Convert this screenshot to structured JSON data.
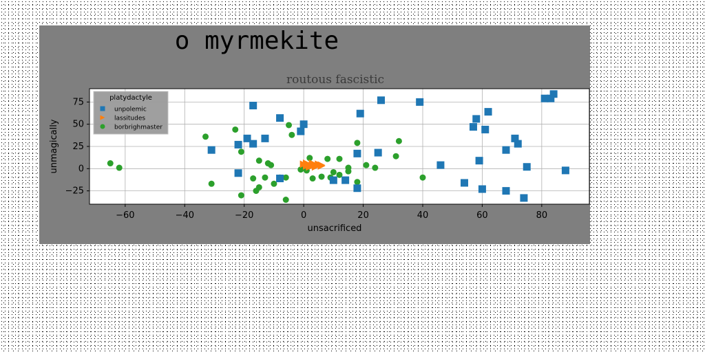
{
  "chart_data": {
    "type": "scatter",
    "suptitle": "o myrmekite",
    "title": "routous fascistic",
    "xlabel": "unsacrificed",
    "ylabel": "unmagically",
    "xlim": [
      -72,
      96
    ],
    "ylim": [
      -40,
      90
    ],
    "xticks": [
      -60,
      -40,
      -20,
      0,
      20,
      40,
      60,
      80
    ],
    "yticks": [
      -25,
      0,
      25,
      50,
      75
    ],
    "grid": true,
    "legend": {
      "title": "platydactyle",
      "placement": "upper-left"
    },
    "series": [
      {
        "name": "unpolemic",
        "marker": "square",
        "color": "#1f77b4",
        "points": [
          [
            -31,
            21
          ],
          [
            -22,
            27
          ],
          [
            -22,
            -5
          ],
          [
            -19,
            34
          ],
          [
            -17,
            71
          ],
          [
            -17,
            28
          ],
          [
            -13,
            34
          ],
          [
            -8,
            57
          ],
          [
            -8,
            -11
          ],
          [
            -1,
            42
          ],
          [
            0,
            50
          ],
          [
            10,
            -13
          ],
          [
            14,
            -13
          ],
          [
            18,
            -22
          ],
          [
            18,
            17
          ],
          [
            19,
            62
          ],
          [
            25,
            18
          ],
          [
            26,
            77
          ],
          [
            39,
            75
          ],
          [
            46,
            4
          ],
          [
            54,
            -16
          ],
          [
            57,
            47
          ],
          [
            58,
            56
          ],
          [
            59,
            9
          ],
          [
            60,
            -23
          ],
          [
            61,
            44
          ],
          [
            62,
            64
          ],
          [
            68,
            -25
          ],
          [
            68,
            21
          ],
          [
            71,
            34
          ],
          [
            72,
            28
          ],
          [
            74,
            -33
          ],
          [
            75,
            2
          ],
          [
            81,
            79
          ],
          [
            83,
            79
          ],
          [
            84,
            84
          ],
          [
            88,
            -2
          ]
        ]
      },
      {
        "name": "lassitudes",
        "marker": "triangle",
        "color": "#ff7f0e",
        "points": [
          [
            0,
            5
          ],
          [
            1,
            3
          ],
          [
            1,
            6
          ],
          [
            2,
            4
          ],
          [
            3,
            3
          ],
          [
            3,
            6
          ],
          [
            4,
            4
          ],
          [
            4,
            2
          ],
          [
            5,
            5
          ],
          [
            6,
            3
          ],
          [
            6,
            4
          ],
          [
            2,
            2
          ],
          [
            3,
            5
          ]
        ]
      },
      {
        "name": "borbrighmaster",
        "marker": "circle",
        "color": "#2ca02c",
        "points": [
          [
            -65,
            6
          ],
          [
            -62,
            1
          ],
          [
            -33,
            36
          ],
          [
            -31,
            -17
          ],
          [
            -23,
            44
          ],
          [
            -21,
            19
          ],
          [
            -21,
            -30
          ],
          [
            -17,
            -11
          ],
          [
            -16,
            -25
          ],
          [
            -15,
            -21
          ],
          [
            -15,
            9
          ],
          [
            -13,
            -10
          ],
          [
            -12,
            6
          ],
          [
            -11,
            4
          ],
          [
            -10,
            -17
          ],
          [
            -8,
            -10
          ],
          [
            -6,
            -10
          ],
          [
            -6,
            -35
          ],
          [
            -5,
            49
          ],
          [
            -4,
            38
          ],
          [
            -1,
            -1
          ],
          [
            0,
            2
          ],
          [
            1,
            -2
          ],
          [
            2,
            12
          ],
          [
            3,
            -11
          ],
          [
            6,
            -9
          ],
          [
            8,
            11
          ],
          [
            9,
            -10
          ],
          [
            10,
            -4
          ],
          [
            12,
            11
          ],
          [
            12,
            -7
          ],
          [
            15,
            -3
          ],
          [
            15,
            1
          ],
          [
            18,
            -15
          ],
          [
            18,
            29
          ],
          [
            21,
            4
          ],
          [
            24,
            1
          ],
          [
            31,
            14
          ],
          [
            32,
            31
          ],
          [
            40,
            -10
          ]
        ]
      }
    ]
  }
}
